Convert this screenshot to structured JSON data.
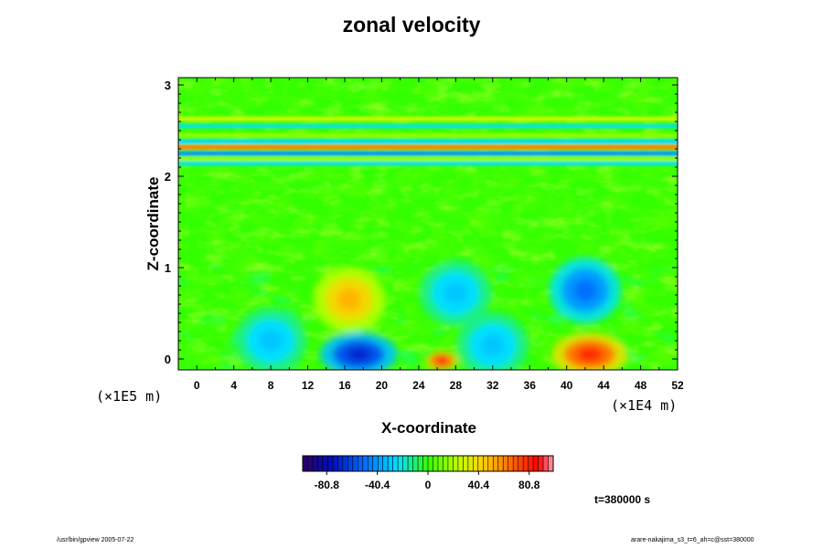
{
  "chart_data": {
    "type": "heatmap",
    "title": "zonal velocity",
    "xlabel": "X-coordinate",
    "ylabel": "Z-coordinate",
    "x_unit": "(×1E4 m)",
    "y_unit": "(×1E5 m)",
    "xlim": [
      -2,
      52
    ],
    "ylim": [
      -0.12,
      3.08
    ],
    "x_ticks": [
      "0",
      "4",
      "8",
      "12",
      "16",
      "20",
      "24",
      "28",
      "32",
      "36",
      "40",
      "44",
      "48",
      "52"
    ],
    "y_ticks": [
      "0",
      "1",
      "2",
      "3"
    ],
    "colorbar": {
      "range": [
        -100,
        100
      ],
      "ticks": [
        -80.8,
        -40.4,
        0,
        40.4,
        80.8
      ],
      "tick_labels": [
        "-80.8",
        "-40.4",
        "0",
        "40.4",
        "80.8"
      ]
    },
    "features": [
      {
        "x": 16.5,
        "z": 0.65,
        "value": 50
      },
      {
        "x": 17.5,
        "z": 0.05,
        "value": -70
      },
      {
        "x": 26.5,
        "z": -0.02,
        "value": 90
      },
      {
        "x": 42.5,
        "z": 0.05,
        "value": 80
      },
      {
        "x": 42.0,
        "z": 0.75,
        "value": -50
      },
      {
        "x": 28.0,
        "z": 0.72,
        "value": -30
      },
      {
        "x": 8.0,
        "z": 0.2,
        "value": -30
      },
      {
        "x": 32.0,
        "z": 0.15,
        "value": -30
      }
    ],
    "bands": [
      {
        "z": 2.63,
        "value": 25
      },
      {
        "z": 2.55,
        "value": -20
      },
      {
        "z": 2.45,
        "value": 15
      },
      {
        "z": 2.38,
        "value": -25
      },
      {
        "z": 2.32,
        "value": 60
      },
      {
        "z": 2.25,
        "value": -40
      },
      {
        "z": 2.19,
        "value": 15
      },
      {
        "z": 2.14,
        "value": -20
      }
    ]
  },
  "annotations": {
    "time": "t=380000 s",
    "footer_left": "/usr/bin/gpview 2005-07-22",
    "footer_right": "arare-nakajima_s3_t=6_ah=c@sst=380000"
  },
  "colors": {
    "background_field": "#33ff00",
    "axis": "#000000"
  }
}
